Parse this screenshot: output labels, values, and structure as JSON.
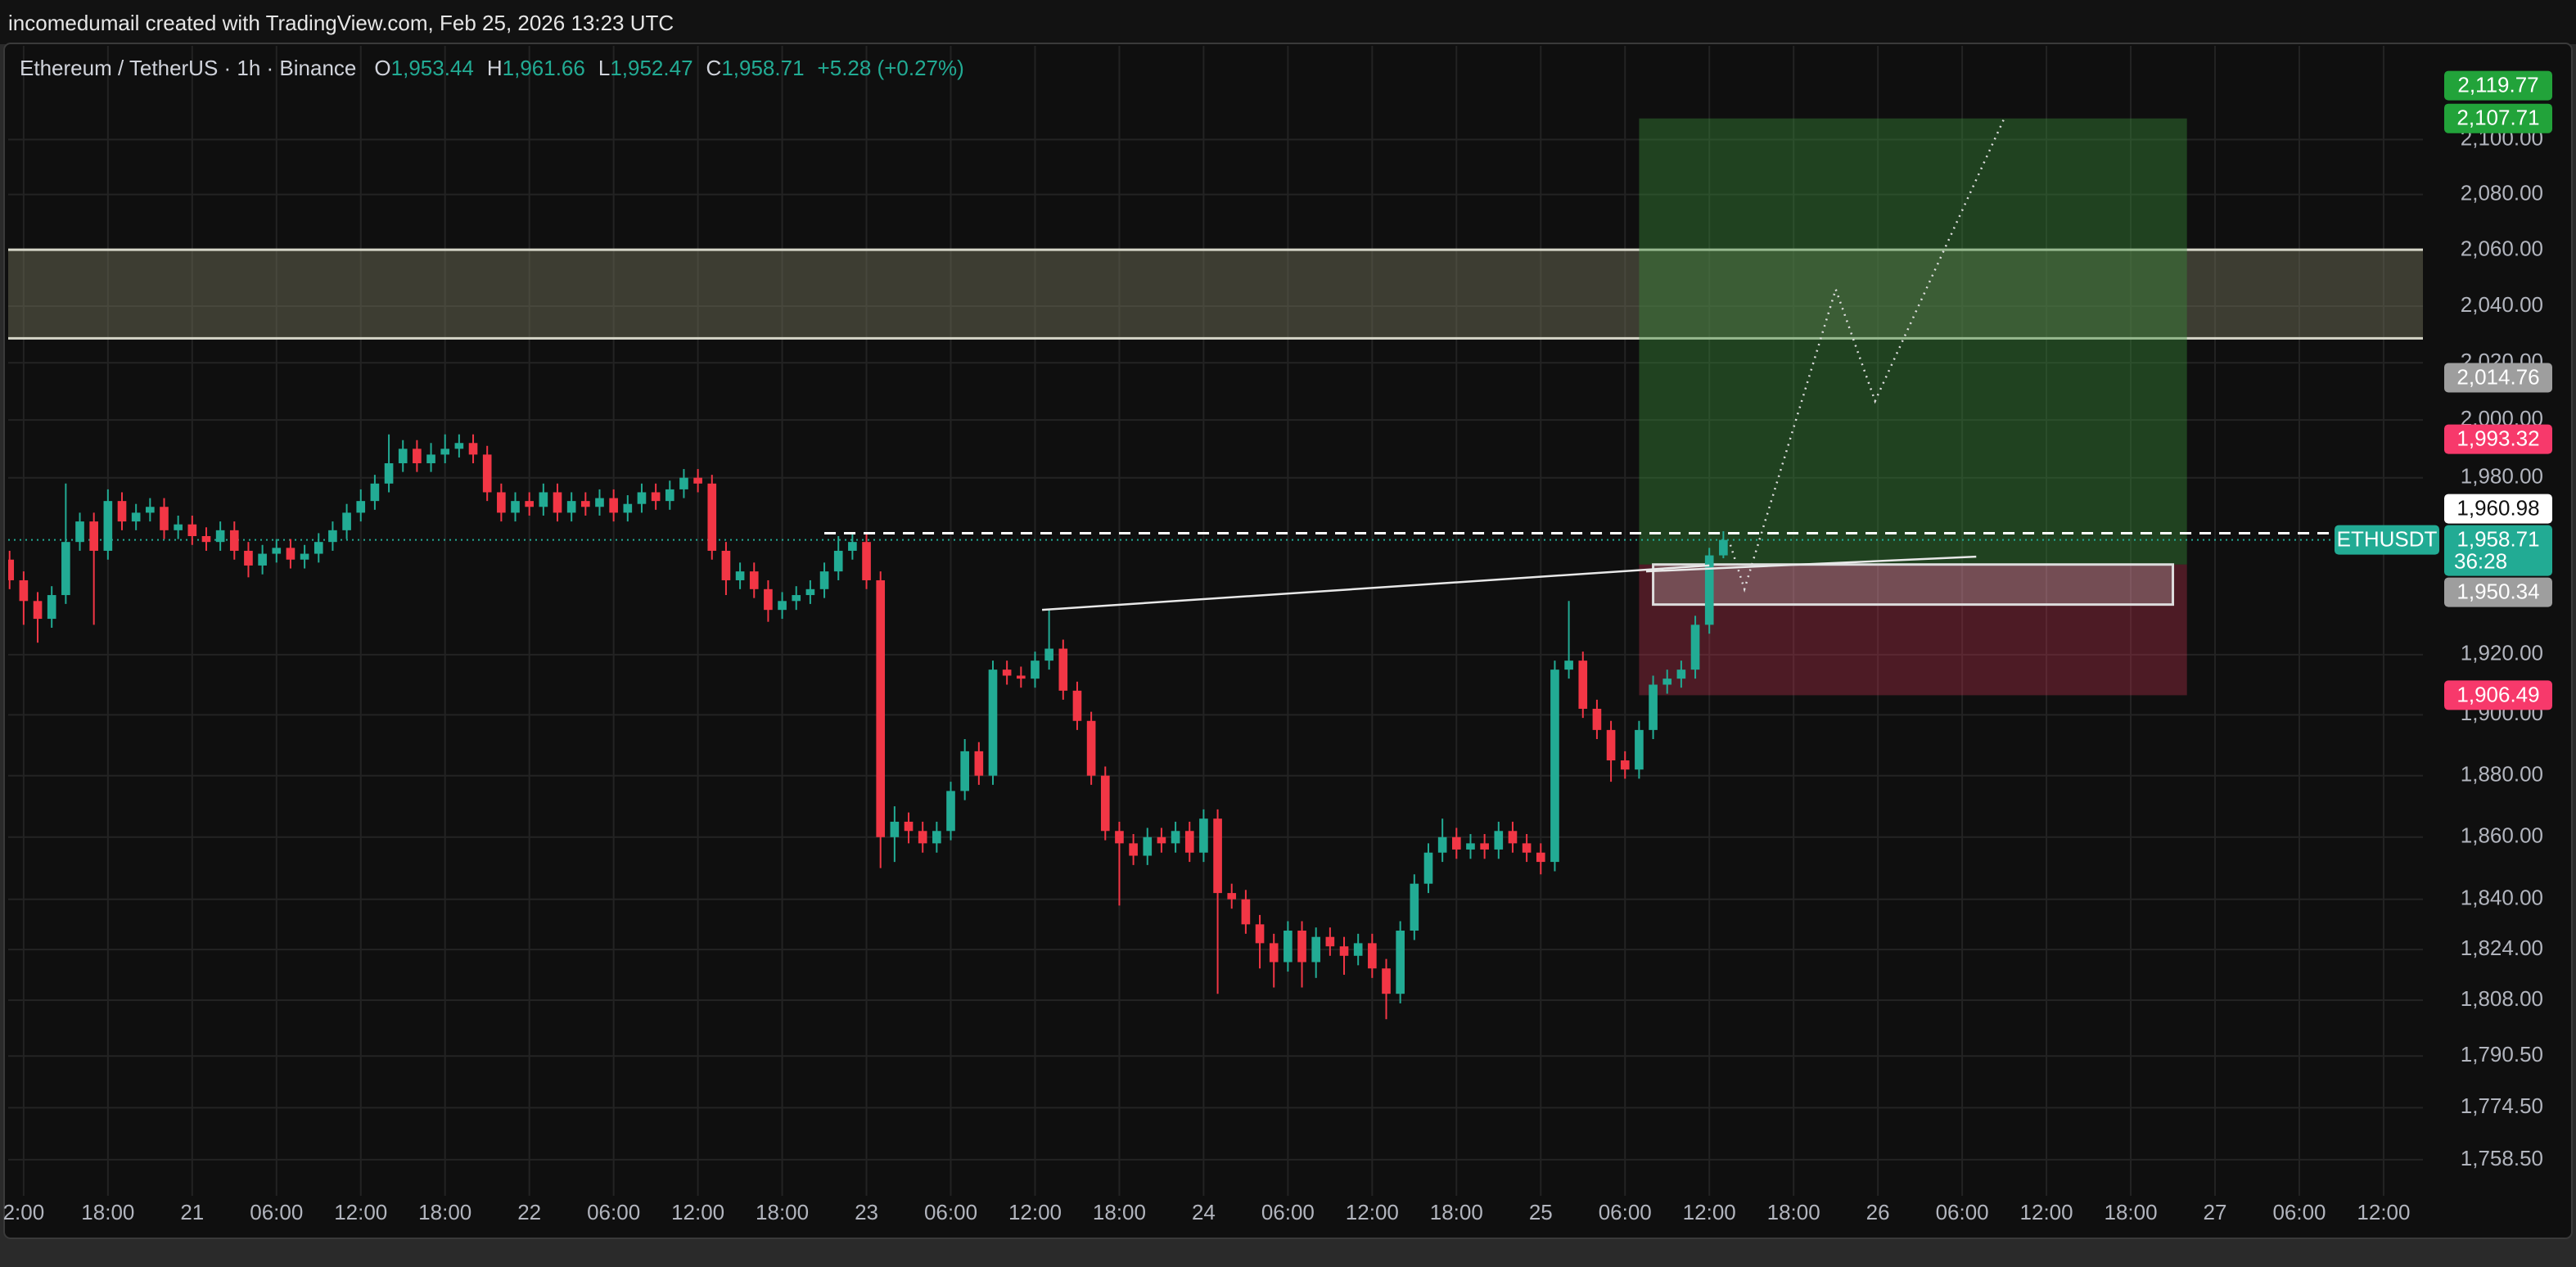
{
  "chart_data": {
    "type": "candlestick",
    "attribution": "incomedumail created with TradingView.com, Feb 25, 2026 13:23 UTC",
    "title": "Ethereum / TetherUS · 1h · Binance",
    "legend_ohlc": [
      {
        "key": "O",
        "label": "1,953.44"
      },
      {
        "key": "H",
        "label": "1,961.66"
      },
      {
        "key": "L",
        "label": "1,952.47"
      },
      {
        "key": "C",
        "label": "1,958.71"
      }
    ],
    "change": "+5.28 (+0.27%)",
    "symbol_tag": "ETHUSDT",
    "countdown": "36:28",
    "up_color": "#22ab94",
    "down_color": "#f23645",
    "log_scale": true,
    "grid": true,
    "xlim": [
      -13.1,
      158.8
    ],
    "ylim": [
      1747.5,
      2134.5
    ],
    "xticks": [
      {
        "value": -12,
        "label": "2:00"
      },
      {
        "value": -6,
        "label": "18:00"
      },
      {
        "value": 0,
        "label": "21"
      },
      {
        "value": 6,
        "label": "06:00"
      },
      {
        "value": 12,
        "label": "12:00"
      },
      {
        "value": 18,
        "label": "18:00"
      },
      {
        "value": 24,
        "label": "22"
      },
      {
        "value": 30,
        "label": "06:00"
      },
      {
        "value": 36,
        "label": "12:00"
      },
      {
        "value": 42,
        "label": "18:00"
      },
      {
        "value": 48,
        "label": "23"
      },
      {
        "value": 54,
        "label": "06:00"
      },
      {
        "value": 60,
        "label": "12:00"
      },
      {
        "value": 66,
        "label": "18:00"
      },
      {
        "value": 72,
        "label": "24"
      },
      {
        "value": 78,
        "label": "06:00"
      },
      {
        "value": 84,
        "label": "12:00"
      },
      {
        "value": 90,
        "label": "18:00"
      },
      {
        "value": 96,
        "label": "25"
      },
      {
        "value": 102,
        "label": "06:00"
      },
      {
        "value": 108,
        "label": "12:00"
      },
      {
        "value": 114,
        "label": "18:00"
      },
      {
        "value": 120,
        "label": "26"
      },
      {
        "value": 126,
        "label": "06:00"
      },
      {
        "value": 132,
        "label": "12:00"
      },
      {
        "value": 138,
        "label": "18:00"
      },
      {
        "value": 144,
        "label": "27"
      },
      {
        "value": 150,
        "label": "06:00"
      },
      {
        "value": 156,
        "label": "12:00"
      }
    ],
    "yticks": [
      {
        "value": 2100,
        "label": "2,100.00"
      },
      {
        "value": 2080,
        "label": "2,080.00"
      },
      {
        "value": 2060,
        "label": "2,060.00"
      },
      {
        "value": 2040,
        "label": "2,040.00"
      },
      {
        "value": 2020,
        "label": "2,020.00"
      },
      {
        "value": 2000,
        "label": "2,000.00"
      },
      {
        "value": 1980,
        "label": "1,980.00"
      },
      {
        "value": 1920,
        "label": "1,920.00"
      },
      {
        "value": 1900,
        "label": "1,900.00"
      },
      {
        "value": 1880,
        "label": "1,880.00"
      },
      {
        "value": 1860,
        "label": "1,860.00"
      },
      {
        "value": 1840,
        "label": "1,840.00"
      },
      {
        "value": 1824,
        "label": "1,824.00"
      },
      {
        "value": 1808,
        "label": "1,808.00"
      },
      {
        "value": 1790.5,
        "label": "1,790.50"
      },
      {
        "value": 1774.5,
        "label": "1,774.50"
      },
      {
        "value": 1758.5,
        "label": "1,758.50"
      }
    ],
    "x": [
      -13,
      -12,
      -11,
      -10,
      -9,
      -8,
      -7,
      -6,
      -5,
      -4,
      -3,
      -2,
      -1,
      0,
      1,
      2,
      3,
      4,
      5,
      6,
      7,
      8,
      9,
      10,
      11,
      12,
      13,
      14,
      15,
      16,
      17,
      18,
      19,
      20,
      21,
      22,
      23,
      24,
      25,
      26,
      27,
      28,
      29,
      30,
      31,
      32,
      33,
      34,
      35,
      36,
      37,
      38,
      39,
      40,
      41,
      42,
      43,
      44,
      45,
      46,
      47,
      48,
      49,
      50,
      51,
      52,
      53,
      54,
      55,
      56,
      57,
      58,
      59,
      60,
      61,
      62,
      63,
      64,
      65,
      66,
      67,
      68,
      69,
      70,
      71,
      72,
      73,
      74,
      75,
      76,
      77,
      78,
      79,
      80,
      81,
      82,
      83,
      84,
      85,
      86,
      87,
      88,
      89,
      90,
      91,
      92,
      93,
      94,
      95,
      96,
      97,
      98,
      99,
      100,
      101,
      102,
      103,
      104,
      105,
      106,
      107,
      108,
      109
    ],
    "open": [
      1952,
      1945,
      1938,
      1932,
      1940,
      1958,
      1965,
      1955,
      1972,
      1965,
      1968,
      1970,
      1962,
      1964,
      1960,
      1958,
      1962,
      1955,
      1950,
      1954,
      1956,
      1952,
      1954,
      1958,
      1962,
      1968,
      1972,
      1978,
      1985,
      1990,
      1985,
      1988,
      1990,
      1992,
      1988,
      1975,
      1968,
      1972,
      1970,
      1975,
      1968,
      1972,
      1970,
      1973,
      1968,
      1971,
      1975,
      1972,
      1976,
      1980,
      1978,
      1955,
      1945,
      1948,
      1942,
      1935,
      1938,
      1940,
      1942,
      1948,
      1955,
      1958,
      1945,
      1860,
      1865,
      1862,
      1858,
      1862,
      1875,
      1888,
      1880,
      1915,
      1913,
      1912,
      1918,
      1922,
      1908,
      1898,
      1880,
      1862,
      1858,
      1854,
      1860,
      1858,
      1862,
      1855,
      1866,
      1842,
      1840,
      1832,
      1826,
      1820,
      1830,
      1820,
      1828,
      1825,
      1822,
      1826,
      1818,
      1810,
      1830,
      1845,
      1855,
      1860,
      1856,
      1858,
      1856,
      1862,
      1858,
      1855,
      1852,
      1915,
      1918,
      1902,
      1895,
      1885,
      1882,
      1895,
      1910,
      1912,
      1915,
      1930,
      1953.44
    ],
    "high": [
      1955,
      1948,
      1941,
      1943,
      1978,
      1968,
      1968,
      1976,
      1975,
      1971,
      1973,
      1973,
      1967,
      1967,
      1963,
      1965,
      1965,
      1958,
      1957,
      1959,
      1959,
      1957,
      1961,
      1965,
      1971,
      1976,
      1981,
      1995,
      1993,
      1993,
      1992,
      1995,
      1995,
      1995,
      1991,
      1978,
      1975,
      1975,
      1978,
      1978,
      1975,
      1975,
      1976,
      1976,
      1974,
      1978,
      1978,
      1979,
      1983,
      1983,
      1981,
      1958,
      1951,
      1951,
      1945,
      1941,
      1943,
      1945,
      1951,
      1960,
      1961,
      1961,
      1948,
      1870,
      1868,
      1865,
      1865,
      1878,
      1892,
      1891,
      1918,
      1918,
      1916,
      1921,
      1935,
      1925,
      1911,
      1901,
      1883,
      1865,
      1861,
      1863,
      1863,
      1865,
      1865,
      1869,
      1869,
      1845,
      1843,
      1835,
      1829,
      1833,
      1833,
      1831,
      1831,
      1828,
      1829,
      1829,
      1821,
      1833,
      1848,
      1858,
      1866,
      1863,
      1861,
      1861,
      1865,
      1865,
      1861,
      1858,
      1918,
      1938,
      1921,
      1905,
      1898,
      1888,
      1898,
      1913,
      1915,
      1918,
      1933,
      1956,
      1961.66
    ],
    "low": [
      1942,
      1930,
      1924,
      1929,
      1937,
      1955,
      1930,
      1952,
      1962,
      1962,
      1965,
      1959,
      1959,
      1957,
      1955,
      1955,
      1952,
      1946,
      1947,
      1951,
      1949,
      1949,
      1951,
      1955,
      1959,
      1965,
      1969,
      1975,
      1982,
      1982,
      1982,
      1985,
      1987,
      1985,
      1972,
      1965,
      1965,
      1967,
      1967,
      1965,
      1965,
      1967,
      1967,
      1965,
      1965,
      1968,
      1969,
      1969,
      1973,
      1975,
      1952,
      1940,
      1942,
      1939,
      1931,
      1932,
      1935,
      1937,
      1939,
      1945,
      1952,
      1942,
      1850,
      1852,
      1858,
      1855,
      1855,
      1859,
      1872,
      1877,
      1877,
      1910,
      1909,
      1909,
      1915,
      1905,
      1895,
      1877,
      1859,
      1838,
      1851,
      1851,
      1855,
      1855,
      1852,
      1852,
      1810,
      1837,
      1829,
      1818,
      1812,
      1817,
      1812,
      1815,
      1822,
      1816,
      1819,
      1815,
      1802,
      1807,
      1827,
      1842,
      1852,
      1853,
      1853,
      1853,
      1853,
      1855,
      1852,
      1848,
      1849,
      1912,
      1899,
      1892,
      1878,
      1879,
      1879,
      1892,
      1907,
      1909,
      1912,
      1927,
      1952.47
    ],
    "close": [
      1945,
      1938,
      1932,
      1940,
      1958,
      1965,
      1955,
      1972,
      1965,
      1968,
      1970,
      1962,
      1964,
      1960,
      1958,
      1962,
      1955,
      1950,
      1954,
      1956,
      1952,
      1954,
      1958,
      1962,
      1968,
      1972,
      1978,
      1985,
      1990,
      1985,
      1988,
      1990,
      1992,
      1988,
      1975,
      1968,
      1972,
      1970,
      1975,
      1968,
      1972,
      1970,
      1973,
      1968,
      1971,
      1975,
      1972,
      1976,
      1980,
      1978,
      1955,
      1945,
      1948,
      1942,
      1935,
      1938,
      1940,
      1942,
      1948,
      1955,
      1958,
      1945,
      1860,
      1865,
      1862,
      1858,
      1862,
      1875,
      1888,
      1880,
      1915,
      1913,
      1912,
      1918,
      1922,
      1908,
      1898,
      1880,
      1862,
      1858,
      1854,
      1860,
      1858,
      1862,
      1855,
      1866,
      1842,
      1840,
      1832,
      1826,
      1820,
      1830,
      1820,
      1828,
      1825,
      1822,
      1826,
      1818,
      1810,
      1830,
      1845,
      1855,
      1860,
      1856,
      1858,
      1856,
      1862,
      1858,
      1855,
      1852,
      1915,
      1918,
      1902,
      1895,
      1885,
      1882,
      1895,
      1910,
      1912,
      1915,
      1930,
      1953.44,
      1958.71
    ],
    "last_price": {
      "value": 1958.71,
      "label": "1,958.71",
      "color": "#22ab94"
    },
    "price_labels": [
      {
        "value": 2119.77,
        "label": "2,119.77",
        "color": "#22a33a"
      },
      {
        "value": 2107.71,
        "label": "2,107.71",
        "color": "#22a33a"
      },
      {
        "value": 2014.76,
        "label": "2,014.76",
        "color": "#9e9e9e"
      },
      {
        "value": 1993.32,
        "label": "1,993.32",
        "color": "#f7396b"
      },
      {
        "value": 1960.98,
        "label": "1,960.98",
        "color": "#ffffff"
      },
      {
        "value": 1950.34,
        "label": "1,950.34",
        "color": "#9e9e9e"
      },
      {
        "value": 1906.49,
        "label": "1,906.49",
        "color": "#f7396b"
      }
    ],
    "zone": {
      "ylim": [
        2028.6,
        2060.1
      ]
    },
    "position": {
      "xlim": [
        103,
        142
      ],
      "target": 2107.71,
      "entry": 1950.34,
      "stop": 1906.49
    },
    "box": {
      "xlim": [
        104,
        141
      ],
      "ylim": [
        1936.8,
        1950.34
      ]
    },
    "trendlines": [
      {
        "x": [
          60.5,
          108
        ],
        "y": [
          1935,
          1950
        ]
      },
      {
        "x": [
          103.5,
          127
        ],
        "y": [
          1948,
          1953
        ]
      }
    ],
    "projection": {
      "x": [
        109.5,
        110.5,
        117,
        119.8,
        129
      ],
      "y": [
        1957,
        1942,
        2046,
        2006.6,
        2107.8
      ]
    },
    "dashed_level": {
      "value": 1960.98,
      "xstart": 45
    }
  }
}
